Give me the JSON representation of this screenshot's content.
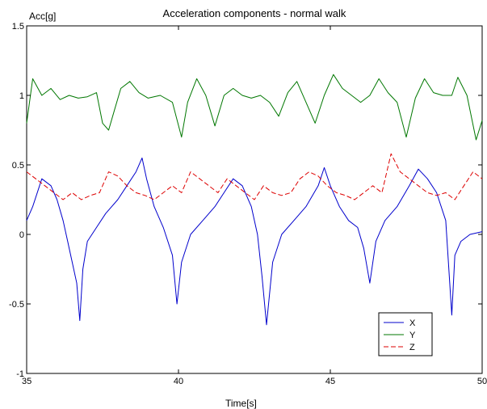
{
  "chart_data": {
    "type": "line",
    "title": "Acceleration components - normal walk",
    "xlabel": "Time[s]",
    "ylabel": "Acc[g]",
    "xlim": [
      35,
      50
    ],
    "ylim": [
      -1,
      1.5
    ],
    "xticks": [
      35,
      40,
      45,
      50
    ],
    "xtick_labels": [
      "35",
      "40",
      "45",
      "50"
    ],
    "yticks": [
      -1,
      -0.5,
      0,
      0.5,
      1,
      1.5
    ],
    "ytick_labels": [
      "-1",
      "-0.5",
      "0",
      "0.5",
      "1",
      "1.5"
    ],
    "grid": false,
    "legend_position": "lower-right",
    "series": [
      {
        "name": "X",
        "color": "#0000cc",
        "style": "solid",
        "x": [
          35.0,
          35.2,
          35.5,
          35.8,
          36.0,
          36.2,
          36.35,
          36.5,
          36.65,
          36.75,
          36.85,
          37.0,
          37.3,
          37.6,
          38.0,
          38.3,
          38.6,
          38.8,
          38.95,
          39.2,
          39.5,
          39.8,
          39.95,
          40.1,
          40.4,
          40.8,
          41.2,
          41.5,
          41.8,
          42.1,
          42.4,
          42.6,
          42.75,
          42.9,
          43.1,
          43.4,
          43.8,
          44.2,
          44.6,
          44.8,
          45.0,
          45.3,
          45.6,
          45.9,
          46.1,
          46.3,
          46.5,
          46.8,
          47.2,
          47.6,
          47.9,
          48.2,
          48.5,
          48.8,
          49.0,
          49.1,
          49.3,
          49.6,
          50.0
        ],
        "y": [
          0.1,
          0.2,
          0.4,
          0.35,
          0.25,
          0.1,
          -0.05,
          -0.2,
          -0.35,
          -0.62,
          -0.25,
          -0.05,
          0.05,
          0.15,
          0.25,
          0.35,
          0.45,
          0.55,
          0.4,
          0.2,
          0.05,
          -0.15,
          -0.5,
          -0.2,
          0.0,
          0.1,
          0.2,
          0.3,
          0.4,
          0.35,
          0.2,
          0.0,
          -0.3,
          -0.65,
          -0.2,
          0.0,
          0.1,
          0.2,
          0.35,
          0.48,
          0.35,
          0.2,
          0.1,
          0.05,
          -0.1,
          -0.35,
          -0.05,
          0.1,
          0.2,
          0.35,
          0.47,
          0.4,
          0.3,
          0.1,
          -0.58,
          -0.15,
          -0.05,
          0.0,
          0.02
        ]
      },
      {
        "name": "Y",
        "color": "#007700",
        "style": "solid",
        "x": [
          35.0,
          35.2,
          35.5,
          35.8,
          36.1,
          36.4,
          36.7,
          37.0,
          37.3,
          37.5,
          37.7,
          37.9,
          38.1,
          38.4,
          38.7,
          39.0,
          39.4,
          39.8,
          40.1,
          40.3,
          40.6,
          40.9,
          41.2,
          41.5,
          41.8,
          42.1,
          42.4,
          42.7,
          43.0,
          43.3,
          43.6,
          43.9,
          44.2,
          44.5,
          44.8,
          45.1,
          45.4,
          45.7,
          46.0,
          46.3,
          46.6,
          46.9,
          47.2,
          47.5,
          47.8,
          48.1,
          48.4,
          48.7,
          49.0,
          49.2,
          49.5,
          49.8,
          50.0
        ],
        "y": [
          0.8,
          1.12,
          1.0,
          1.05,
          0.97,
          1.0,
          0.98,
          0.99,
          1.02,
          0.8,
          0.75,
          0.9,
          1.05,
          1.1,
          1.02,
          0.98,
          1.0,
          0.95,
          0.7,
          0.95,
          1.12,
          1.0,
          0.78,
          1.0,
          1.05,
          1.0,
          0.98,
          1.0,
          0.95,
          0.85,
          1.02,
          1.1,
          0.95,
          0.8,
          1.0,
          1.15,
          1.05,
          1.0,
          0.95,
          1.0,
          1.12,
          1.02,
          0.95,
          0.7,
          0.98,
          1.12,
          1.02,
          1.0,
          1.0,
          1.13,
          1.0,
          0.68,
          0.82
        ]
      },
      {
        "name": "Z",
        "color": "#dd0000",
        "style": "dashed",
        "x": [
          35.0,
          35.3,
          35.6,
          35.9,
          36.2,
          36.5,
          36.8,
          37.1,
          37.4,
          37.7,
          38.0,
          38.3,
          38.6,
          38.9,
          39.2,
          39.5,
          39.8,
          40.1,
          40.4,
          40.7,
          41.0,
          41.3,
          41.6,
          41.9,
          42.2,
          42.5,
          42.8,
          43.1,
          43.4,
          43.7,
          44.0,
          44.3,
          44.6,
          44.9,
          45.2,
          45.5,
          45.8,
          46.1,
          46.4,
          46.7,
          47.0,
          47.3,
          47.6,
          47.9,
          48.2,
          48.5,
          48.8,
          49.1,
          49.4,
          49.7,
          50.0
        ],
        "y": [
          0.45,
          0.4,
          0.35,
          0.3,
          0.25,
          0.3,
          0.25,
          0.28,
          0.3,
          0.45,
          0.42,
          0.35,
          0.3,
          0.28,
          0.25,
          0.3,
          0.35,
          0.3,
          0.45,
          0.4,
          0.35,
          0.3,
          0.4,
          0.35,
          0.3,
          0.25,
          0.35,
          0.3,
          0.28,
          0.3,
          0.4,
          0.45,
          0.42,
          0.35,
          0.3,
          0.28,
          0.25,
          0.3,
          0.35,
          0.3,
          0.58,
          0.45,
          0.4,
          0.35,
          0.3,
          0.28,
          0.3,
          0.25,
          0.35,
          0.45,
          0.4
        ]
      }
    ]
  }
}
